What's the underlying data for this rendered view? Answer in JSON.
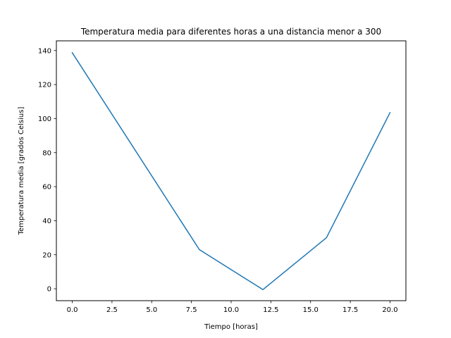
{
  "chart_data": {
    "type": "line",
    "title": "Temperatura media para diferentes horas a una distancia menor a 300",
    "xlabel": "Tiempo [horas]",
    "ylabel": "Temperatura media [grados Celsius]",
    "xlim": [
      -1.0,
      21.0
    ],
    "ylim": [
      -7.0,
      145.7
    ],
    "xticks": [
      0.0,
      2.5,
      5.0,
      7.5,
      10.0,
      12.5,
      15.0,
      17.5,
      20.0
    ],
    "xtick_labels": [
      "0.0",
      "2.5",
      "5.0",
      "7.5",
      "10.0",
      "12.5",
      "15.0",
      "17.5",
      "20.0"
    ],
    "yticks": [
      0,
      20,
      40,
      60,
      80,
      100,
      120,
      140
    ],
    "ytick_labels": [
      "0",
      "20",
      "40",
      "60",
      "80",
      "100",
      "120",
      "140"
    ],
    "grid": false,
    "series": [
      {
        "color": "#1f77b4",
        "x": [
          0,
          8,
          12,
          16,
          20
        ],
        "y": [
          138.7,
          23.0,
          -0.5,
          30.0,
          103.5
        ]
      }
    ]
  }
}
